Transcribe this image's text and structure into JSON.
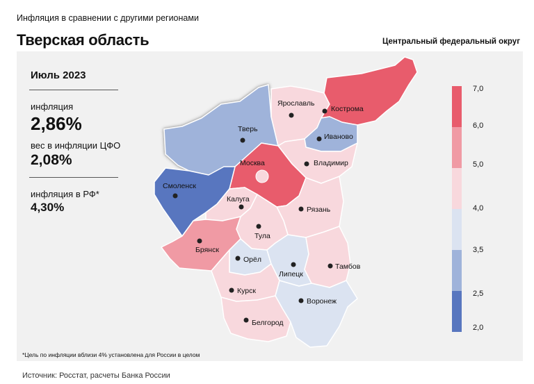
{
  "header": {
    "subtitle": "Инфляция  в сравнении  с другими регионами",
    "title": "Тверская область",
    "right_title": "Центральный федеральный округ"
  },
  "stats": {
    "period": "Июль 2023",
    "inflation_label": "инфляция",
    "inflation_value": "2,86%",
    "weight_label": "вес в инфляции ЦФО",
    "weight_value": "2,08%",
    "rf_label": "инфляция  в РФ*",
    "rf_value": "4,30%"
  },
  "footnote": "*Цель по инфляции вблизи 4% установлена для России в целом",
  "source": "Источник: Росстат, расчеты Банка России",
  "legend": {
    "ticks": [
      "7,0",
      "6,0",
      "5,0",
      "4,0",
      "3,5",
      "2,5",
      "2,0"
    ],
    "colors": [
      "#e85c6c",
      "#f09aa4",
      "#f8d8dd",
      "#dbe3f1",
      "#9fb3da",
      "#5876bf"
    ]
  },
  "colors": {
    "very_high": "#e85c6c",
    "high": "#f09aa4",
    "moderate": "#f8d8dd",
    "neutral_low": "#dbe3f1",
    "low": "#9fb3da",
    "very_low": "#5876bf"
  },
  "regions": [
    {
      "key": "tver",
      "name": "Тверь"
    },
    {
      "key": "yaroslavl",
      "name": "Ярославль"
    },
    {
      "key": "kostroma",
      "name": "Кострома"
    },
    {
      "key": "ivanovo",
      "name": "Иваново"
    },
    {
      "key": "moscow",
      "name": "Москва"
    },
    {
      "key": "vladimir",
      "name": "Владимир"
    },
    {
      "key": "smolensk",
      "name": "Смоленск"
    },
    {
      "key": "kaluga",
      "name": "Калуга"
    },
    {
      "key": "ryazan",
      "name": "Рязань"
    },
    {
      "key": "tula",
      "name": "Тула"
    },
    {
      "key": "bryansk",
      "name": "Брянск"
    },
    {
      "key": "orel",
      "name": "Орёл"
    },
    {
      "key": "lipetsk",
      "name": "Липецк"
    },
    {
      "key": "tambov",
      "name": "Тамбов"
    },
    {
      "key": "kursk",
      "name": "Курск"
    },
    {
      "key": "voronezh",
      "name": "Воронеж"
    },
    {
      "key": "belgorod",
      "name": "Белгород"
    }
  ]
}
